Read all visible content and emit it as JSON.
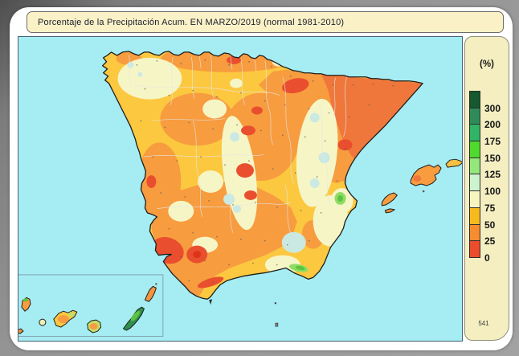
{
  "title_bar": {
    "text": "Porcentaje de la Precipitación Acum. EN  MARZO/2019  (normal 1981-2010)"
  },
  "legend": {
    "unit_label": "(%)",
    "scale": [
      {
        "label": "300",
        "color": "#14592F"
      },
      {
        "label": "200",
        "color": "#2F8C59"
      },
      {
        "label": "175",
        "color": "#31B465"
      },
      {
        "label": "150",
        "color": "#4FD92E"
      },
      {
        "label": "125",
        "color": "#95E77B"
      },
      {
        "label": "100",
        "color": "#CDF2CE"
      },
      {
        "label": "75",
        "color": "#F7F5BF"
      },
      {
        "label": "50",
        "color": "#F7BA1E"
      },
      {
        "label": "25",
        "color": "#F68B2F"
      },
      {
        "label": "0",
        "color": "#EA4C2C"
      }
    ],
    "footnote": "541"
  },
  "map": {
    "sea_color": "#A6EDF3",
    "palette": {
      "yellow": "#FCC840",
      "orange": "#F79C3F",
      "deep_orange": "#F0773C",
      "red": "#E94E2E",
      "red_core": "#DD3418",
      "cream": "#F6F5C6",
      "teal": "#CBE9E3",
      "green": "#8FDC64",
      "green_core": "#5BC53F",
      "dark_green": "#2F8F4E",
      "yellow_green": "#C3DE6A",
      "pale_lime": "#EEF0B2",
      "outline": "#1D1D1D"
    }
  }
}
